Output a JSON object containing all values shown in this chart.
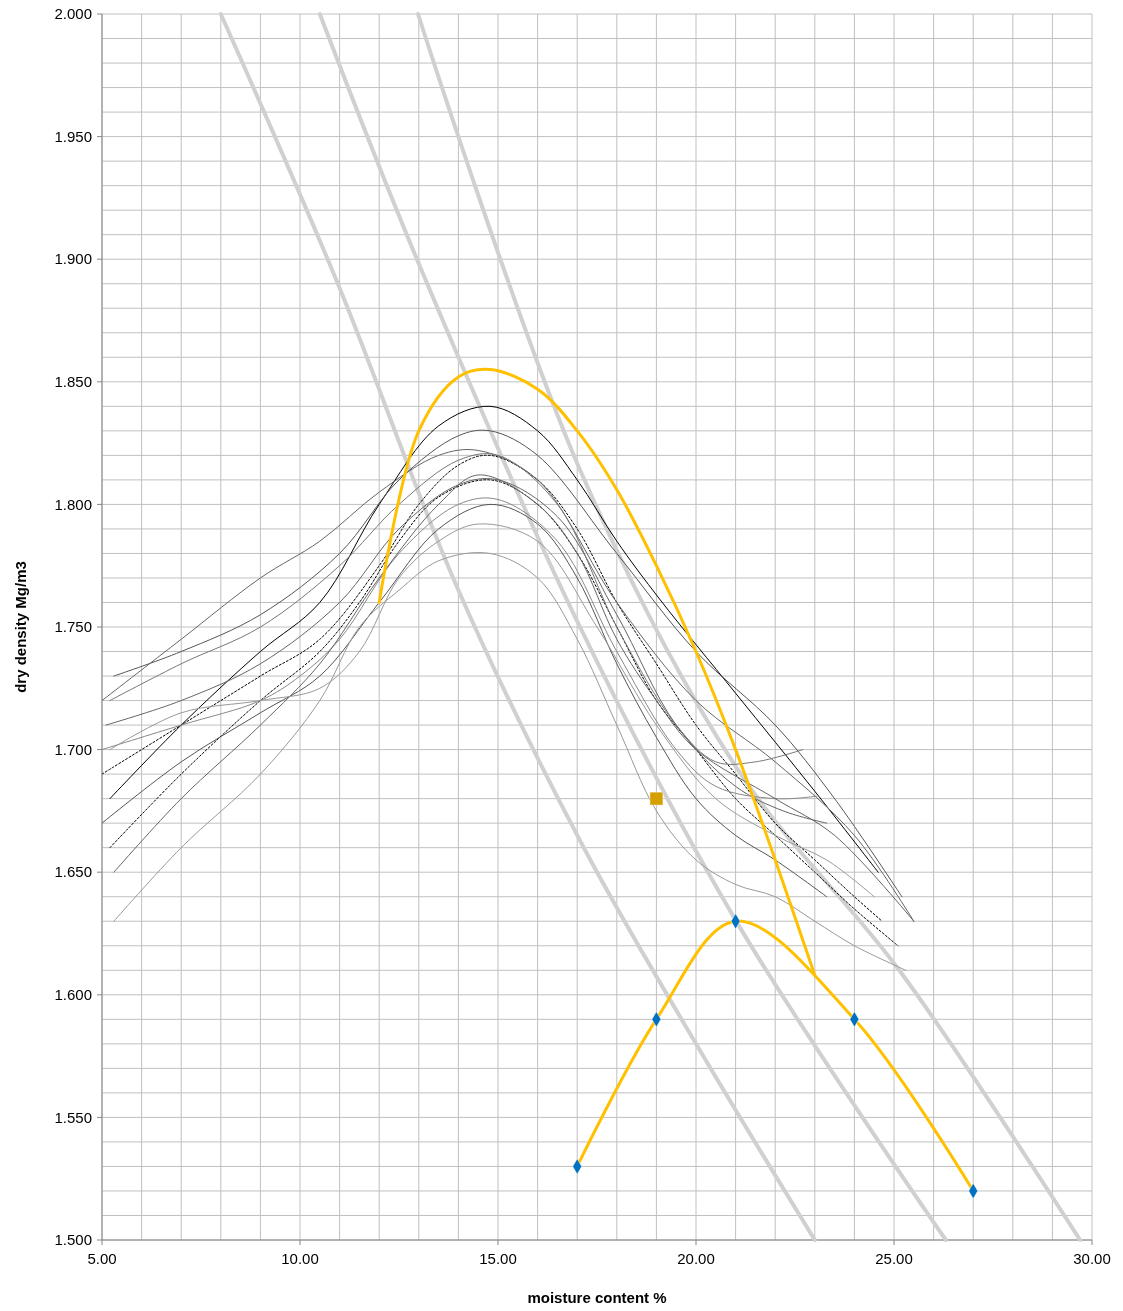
{
  "chart_data": {
    "type": "line",
    "xlabel": "moisture content %",
    "ylabel": "dry density Mg/m3",
    "xlim": [
      5,
      30
    ],
    "ylim": [
      1.5,
      2.0
    ],
    "xticks": [
      {
        "value": 5,
        "label": "5.00"
      },
      {
        "value": 6,
        "label": null
      },
      {
        "value": 7,
        "label": null
      },
      {
        "value": 8,
        "label": null
      },
      {
        "value": 9,
        "label": null
      },
      {
        "value": 10,
        "label": "10.00"
      },
      {
        "value": 11,
        "label": null
      },
      {
        "value": 12,
        "label": null
      },
      {
        "value": 13,
        "label": null
      },
      {
        "value": 14,
        "label": null
      },
      {
        "value": 15,
        "label": "15.00"
      },
      {
        "value": 16,
        "label": null
      },
      {
        "value": 17,
        "label": null
      },
      {
        "value": 18,
        "label": null
      },
      {
        "value": 19,
        "label": null
      },
      {
        "value": 20,
        "label": "20.00"
      },
      {
        "value": 21,
        "label": null
      },
      {
        "value": 22,
        "label": null
      },
      {
        "value": 23,
        "label": null
      },
      {
        "value": 24,
        "label": null
      },
      {
        "value": 25,
        "label": "25.00"
      },
      {
        "value": 26,
        "label": null
      },
      {
        "value": 27,
        "label": null
      },
      {
        "value": 28,
        "label": null
      },
      {
        "value": 29,
        "label": null
      },
      {
        "value": 30,
        "label": "30.00"
      }
    ],
    "yticks": [
      {
        "value": 1.5,
        "label": "1.500"
      },
      {
        "value": 1.51,
        "label": null
      },
      {
        "value": 1.52,
        "label": null
      },
      {
        "value": 1.53,
        "label": null
      },
      {
        "value": 1.54,
        "label": null
      },
      {
        "value": 1.55,
        "label": "1.550"
      },
      {
        "value": 1.56,
        "label": null
      },
      {
        "value": 1.57,
        "label": null
      },
      {
        "value": 1.58,
        "label": null
      },
      {
        "value": 1.59,
        "label": null
      },
      {
        "value": 1.6,
        "label": "1.600"
      },
      {
        "value": 1.61,
        "label": null
      },
      {
        "value": 1.62,
        "label": null
      },
      {
        "value": 1.63,
        "label": null
      },
      {
        "value": 1.64,
        "label": null
      },
      {
        "value": 1.65,
        "label": "1.650"
      },
      {
        "value": 1.66,
        "label": null
      },
      {
        "value": 1.67,
        "label": null
      },
      {
        "value": 1.68,
        "label": null
      },
      {
        "value": 1.69,
        "label": null
      },
      {
        "value": 1.7,
        "label": "1.700"
      },
      {
        "value": 1.71,
        "label": null
      },
      {
        "value": 1.72,
        "label": null
      },
      {
        "value": 1.73,
        "label": null
      },
      {
        "value": 1.74,
        "label": null
      },
      {
        "value": 1.75,
        "label": "1.750"
      },
      {
        "value": 1.76,
        "label": null
      },
      {
        "value": 1.77,
        "label": null
      },
      {
        "value": 1.78,
        "label": null
      },
      {
        "value": 1.79,
        "label": null
      },
      {
        "value": 1.8,
        "label": "1.800"
      },
      {
        "value": 1.81,
        "label": null
      },
      {
        "value": 1.82,
        "label": null
      },
      {
        "value": 1.83,
        "label": null
      },
      {
        "value": 1.84,
        "label": null
      },
      {
        "value": 1.85,
        "label": "1.850"
      },
      {
        "value": 1.86,
        "label": null
      },
      {
        "value": 1.87,
        "label": null
      },
      {
        "value": 1.88,
        "label": null
      },
      {
        "value": 1.89,
        "label": null
      },
      {
        "value": 1.9,
        "label": "1.900"
      },
      {
        "value": 1.91,
        "label": null
      },
      {
        "value": 1.92,
        "label": null
      },
      {
        "value": 1.93,
        "label": null
      },
      {
        "value": 1.94,
        "label": null
      },
      {
        "value": 1.95,
        "label": "1.950"
      },
      {
        "value": 1.96,
        "label": null
      },
      {
        "value": 1.97,
        "label": null
      },
      {
        "value": 1.98,
        "label": null
      },
      {
        "value": 1.99,
        "label": null
      },
      {
        "value": 2.0,
        "label": "2.000"
      }
    ],
    "grid": true,
    "series": [
      {
        "type": "line",
        "color": "#d0d0d0",
        "x": [
          8,
          10.93,
          14.0,
          17.1,
          20,
          23
        ],
        "values": [
          2.0,
          1.891,
          1.765,
          1.662,
          1.58,
          1.5
        ]
      },
      {
        "type": "line",
        "color": "#d0d0d0",
        "x": [
          10.5,
          13.03,
          17.1,
          21.09,
          26.31
        ],
        "values": [
          2.0,
          1.897,
          1.749,
          1.628,
          1.5
        ]
      },
      {
        "type": "line",
        "color": "#d0d0d0",
        "x": [
          12.98,
          17.1,
          21.09,
          25.18,
          29.7
        ],
        "values": [
          2.0,
          1.813,
          1.691,
          1.609,
          1.5
        ]
      },
      {
        "type": "line",
        "color": "#000000",
        "x": [
          5.2,
          7,
          9,
          10.5,
          12,
          13.5,
          14.8,
          16,
          17,
          18,
          19.1,
          21,
          23,
          24.6
        ],
        "values": [
          1.68,
          1.71,
          1.74,
          1.76,
          1.8,
          1.832,
          1.84,
          1.83,
          1.81,
          1.785,
          1.761,
          1.723,
          1.683,
          1.65
        ]
      },
      {
        "type": "line",
        "color": "#000000",
        "line_style": "dotted",
        "x": [
          5,
          7,
          9,
          10.5,
          12,
          13,
          14,
          14.8,
          16,
          17,
          18,
          19,
          20,
          21,
          22,
          23,
          24,
          24.7
        ],
        "values": [
          1.69,
          1.71,
          1.73,
          1.745,
          1.775,
          1.8,
          1.816,
          1.82,
          1.81,
          1.79,
          1.76,
          1.735,
          1.71,
          1.69,
          1.67,
          1.655,
          1.64,
          1.63
        ]
      },
      {
        "type": "line",
        "color": "#000000",
        "line_style": "dotted",
        "x": [
          5.2,
          7,
          9,
          10.5,
          11.5,
          12.5,
          13.5,
          14.8,
          16,
          17,
          18,
          19,
          20,
          21,
          22,
          23,
          24,
          25.1
        ],
        "values": [
          1.66,
          1.69,
          1.72,
          1.74,
          1.76,
          1.785,
          1.803,
          1.81,
          1.8,
          1.78,
          1.75,
          1.72,
          1.7,
          1.68,
          1.665,
          1.65,
          1.635,
          1.62
        ]
      },
      {
        "type": "line",
        "color": "#555555",
        "x": [
          5.3,
          7,
          9,
          11,
          12.5,
          14,
          14.8,
          16,
          18,
          20,
          22,
          23.5,
          25.2
        ],
        "values": [
          1.73,
          1.74,
          1.755,
          1.78,
          1.81,
          1.828,
          1.83,
          1.82,
          1.78,
          1.74,
          1.71,
          1.68,
          1.64
        ]
      },
      {
        "type": "line",
        "color": "#666666",
        "x": [
          5,
          7,
          9,
          10.5,
          12,
          13.5,
          14.5,
          16,
          18,
          20,
          22,
          24,
          25.5
        ],
        "values": [
          1.72,
          1.745,
          1.77,
          1.785,
          1.805,
          1.82,
          1.822,
          1.81,
          1.76,
          1.72,
          1.695,
          1.665,
          1.63
        ]
      },
      {
        "type": "line",
        "color": "#777777",
        "x": [
          5.2,
          7,
          9,
          11,
          12.5,
          14,
          15,
          16.5,
          18,
          19.5,
          20.5,
          21.5,
          22.7
        ],
        "values": [
          1.72,
          1.735,
          1.75,
          1.775,
          1.8,
          1.818,
          1.82,
          1.8,
          1.75,
          1.71,
          1.695,
          1.695,
          1.7
        ]
      },
      {
        "type": "line",
        "color": "#666666",
        "x": [
          5.1,
          7,
          9,
          11,
          12.5,
          14,
          15,
          16.5,
          18,
          19.5,
          21,
          22.2,
          23.3
        ],
        "values": [
          1.71,
          1.72,
          1.735,
          1.76,
          1.79,
          1.808,
          1.81,
          1.795,
          1.755,
          1.71,
          1.685,
          1.675,
          1.67
        ]
      },
      {
        "type": "line",
        "color": "#888888",
        "x": [
          5,
          7,
          9,
          10,
          11,
          12.5,
          14,
          15,
          16.5,
          18,
          19.5,
          20.5,
          22,
          23.06
        ],
        "values": [
          1.7,
          1.71,
          1.72,
          1.73,
          1.745,
          1.78,
          1.8,
          1.802,
          1.785,
          1.74,
          1.7,
          1.685,
          1.68,
          1.681
        ]
      },
      {
        "type": "line",
        "color": "#555555",
        "x": [
          5,
          7,
          9,
          10.5,
          12,
          13.5,
          14.8,
          16,
          17,
          18,
          19,
          20,
          21,
          22,
          23.3
        ],
        "values": [
          1.67,
          1.695,
          1.715,
          1.73,
          1.76,
          1.79,
          1.8,
          1.792,
          1.77,
          1.735,
          1.705,
          1.68,
          1.665,
          1.655,
          1.64
        ]
      },
      {
        "type": "line",
        "color": "#666666",
        "x": [
          5.3,
          7,
          9,
          10.5,
          12,
          13.5,
          14.5,
          16,
          17,
          18,
          19,
          20,
          22,
          23.5,
          25.5
        ],
        "values": [
          1.65,
          1.68,
          1.71,
          1.735,
          1.77,
          1.8,
          1.812,
          1.8,
          1.78,
          1.745,
          1.72,
          1.7,
          1.68,
          1.665,
          1.63
        ]
      },
      {
        "type": "line",
        "color": "#999999",
        "x": [
          5.3,
          7,
          9,
          10.5,
          11.5,
          12.5,
          13.5,
          14.8,
          16,
          17,
          18,
          19,
          20,
          21,
          22,
          23,
          24,
          25.3
        ],
        "values": [
          1.63,
          1.66,
          1.69,
          1.72,
          1.75,
          1.765,
          1.777,
          1.78,
          1.77,
          1.745,
          1.71,
          1.675,
          1.655,
          1.645,
          1.64,
          1.63,
          1.62,
          1.61
        ]
      },
      {
        "type": "line",
        "color": "#999999",
        "x": [
          5.2,
          7,
          9,
          10.5,
          11.5,
          12.5,
          13.5,
          14.5,
          16,
          17.5,
          19,
          20.5,
          22,
          23.3,
          24.5
        ],
        "values": [
          1.7,
          1.715,
          1.72,
          1.725,
          1.74,
          1.77,
          1.785,
          1.792,
          1.785,
          1.75,
          1.71,
          1.68,
          1.665,
          1.655,
          1.64
        ]
      },
      {
        "type": "line",
        "color": "#ffc000",
        "x": [
          12,
          13,
          14,
          14.8,
          16,
          17,
          18,
          19,
          20,
          21,
          22,
          23
        ],
        "values": [
          1.76,
          1.83,
          1.852,
          1.855,
          1.847,
          1.83,
          1.806,
          1.775,
          1.74,
          1.7,
          1.655,
          1.608
        ]
      },
      {
        "type": "line",
        "color": "#ffc000",
        "x": [
          17,
          19,
          21,
          24,
          27
        ],
        "values": [
          1.53,
          1.59,
          1.63,
          1.59,
          1.52
        ]
      },
      {
        "type": "scatter",
        "color": "#0070c0",
        "marker": "diamond",
        "x": [
          17,
          19,
          21,
          24,
          27
        ],
        "values": [
          1.53,
          1.59,
          1.63,
          1.59,
          1.52
        ]
      },
      {
        "type": "scatter",
        "color": "#d4a000",
        "marker": "square",
        "x": [
          19
        ],
        "values": [
          1.68
        ]
      }
    ]
  }
}
